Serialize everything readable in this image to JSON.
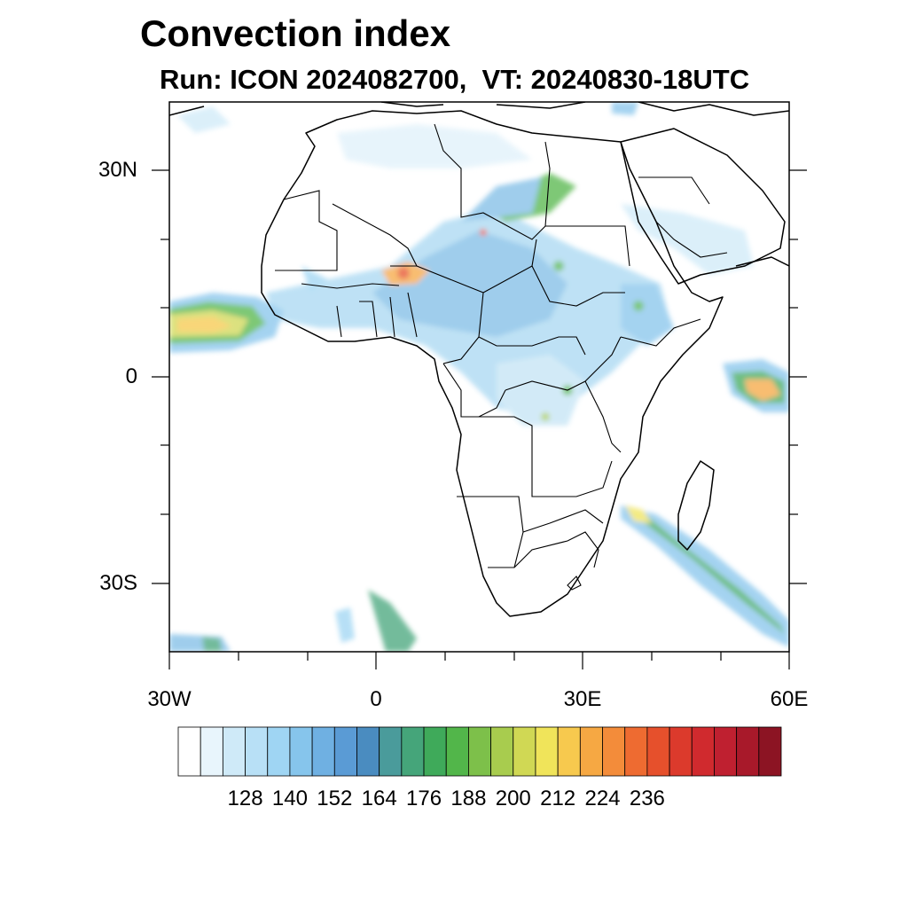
{
  "title": "Convection index",
  "subtitle": "Run: ICON 2024082700,  VT: 20240830-18UTC",
  "map": {
    "lat_labels": [
      "30N",
      "0",
      "30S"
    ],
    "lon_labels": [
      "30W",
      "0",
      "30E",
      "60E"
    ],
    "lat_range": [
      -40,
      40
    ],
    "lon_range": [
      -30,
      60
    ]
  },
  "colorbar": {
    "labels": [
      "128",
      "140",
      "152",
      "164",
      "176",
      "188",
      "200",
      "212",
      "224",
      "236"
    ],
    "colors": [
      "#ffffff",
      "#e8f5fc",
      "#cfeaf8",
      "#b8e0f6",
      "#9fd5f3",
      "#86c5ec",
      "#6fb0e2",
      "#5a9bd5",
      "#4a8cc0",
      "#4a9b9b",
      "#45a57a",
      "#3faa5a",
      "#52b64a",
      "#7dc04a",
      "#a8cc4e",
      "#d0d854",
      "#f0e45a",
      "#f7c94e",
      "#f6a843",
      "#f38c3a",
      "#ee6b31",
      "#e6502c",
      "#dc3a2c",
      "#d02a2e",
      "#bf2030",
      "#a8192a",
      "#8c1423"
    ]
  },
  "accent_colors": {
    "frame": "#000000",
    "border": "#000000"
  }
}
